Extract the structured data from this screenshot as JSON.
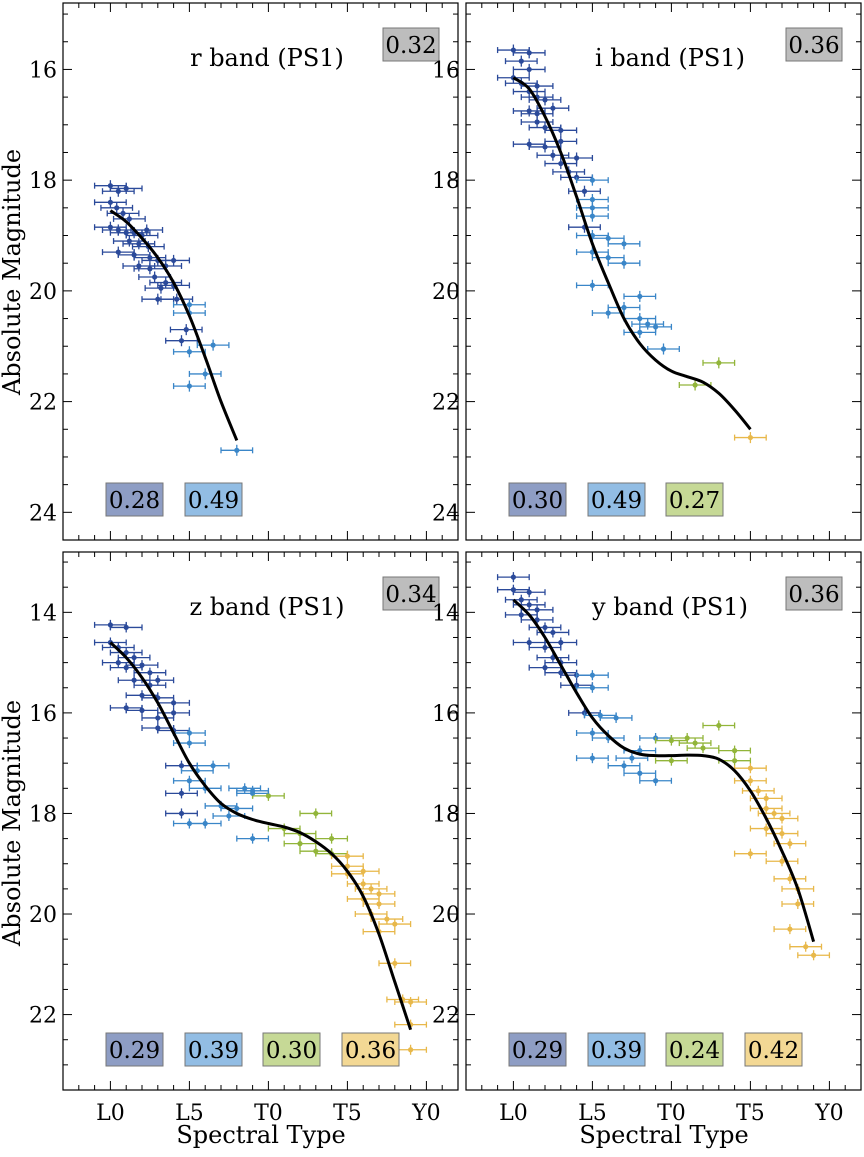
{
  "x_tick_labels": [
    "L0",
    "L5",
    "T0",
    "T5",
    "Y0"
  ],
  "x_axis_label": "Spectral Type",
  "y_axis_label": "Absolute Magnitude",
  "group_colors": {
    "L0-L4": "#2b4a9a",
    "L5-L9": "#3a86c8",
    "T0-T4": "#92b53a",
    "T5-T9": "#e8b84a"
  },
  "box_colors": {
    "grey": "#bdbdbd",
    "L0-L4": "#8e9dc4",
    "L5-L9": "#92bde4",
    "T0-T4": "#c6d996",
    "T5-T9": "#f3d894"
  },
  "chart_data": [
    {
      "type": "scatter",
      "band_label": "r band (PS1)",
      "total_scatter": "0.32",
      "group_scatter": [
        {
          "group": "L0-L4",
          "value": "0.28"
        },
        {
          "group": "L5-L9",
          "value": "0.49"
        }
      ],
      "xlim": [
        -3,
        22
      ],
      "ylim": [
        24.5,
        14.8
      ],
      "yticks": [
        16,
        18,
        20,
        22,
        24
      ],
      "fit": [
        [
          0.0,
          18.55
        ],
        [
          1.0,
          18.75
        ],
        [
          2.0,
          19.05
        ],
        [
          3.0,
          19.4
        ],
        [
          4.0,
          19.85
        ],
        [
          5.0,
          20.45
        ],
        [
          6.0,
          21.2
        ],
        [
          7.0,
          22.0
        ],
        [
          8.0,
          22.7
        ]
      ],
      "points": [
        [
          0,
          18.1
        ],
        [
          0.5,
          18.2
        ],
        [
          1,
          18.15
        ],
        [
          0,
          18.4
        ],
        [
          0.4,
          18.5
        ],
        [
          0.8,
          18.6
        ],
        [
          1.2,
          18.7
        ],
        [
          0,
          18.85
        ],
        [
          0.5,
          18.9
        ],
        [
          1,
          18.95
        ],
        [
          1.5,
          18.95
        ],
        [
          2,
          19.0
        ],
        [
          2.3,
          18.9
        ],
        [
          1.2,
          19.1
        ],
        [
          1.8,
          19.15
        ],
        [
          2.4,
          19.2
        ],
        [
          0.5,
          19.3
        ],
        [
          1.5,
          19.35
        ],
        [
          2.5,
          19.4
        ],
        [
          3.0,
          19.45
        ],
        [
          1.8,
          19.55
        ],
        [
          2.5,
          19.6
        ],
        [
          3.5,
          19.55
        ],
        [
          4.0,
          19.45
        ],
        [
          2.8,
          19.75
        ],
        [
          3.5,
          19.85
        ],
        [
          3.2,
          19.95
        ],
        [
          4.0,
          19.9
        ],
        [
          3.0,
          20.15
        ],
        [
          4.2,
          20.15
        ],
        [
          5.0,
          20.25
        ],
        [
          5.0,
          20.4
        ],
        [
          4.8,
          20.7
        ],
        [
          4.5,
          20.9
        ],
        [
          6.5,
          20.98
        ],
        [
          5.0,
          21.1
        ],
        [
          6.0,
          21.5
        ],
        [
          5.0,
          21.72
        ],
        [
          8.0,
          22.88
        ]
      ]
    },
    {
      "type": "scatter",
      "band_label": "i band (PS1)",
      "total_scatter": "0.36",
      "group_scatter": [
        {
          "group": "L0-L4",
          "value": "0.30"
        },
        {
          "group": "L5-L9",
          "value": "0.49"
        },
        {
          "group": "T0-T4",
          "value": "0.27"
        }
      ],
      "xlim": [
        -3,
        22
      ],
      "ylim": [
        24.5,
        14.8
      ],
      "yticks": [
        16,
        18,
        20,
        22,
        24
      ],
      "fit": [
        [
          0.0,
          16.15
        ],
        [
          1.0,
          16.35
        ],
        [
          2.0,
          16.85
        ],
        [
          3.0,
          17.5
        ],
        [
          4.0,
          18.3
        ],
        [
          5.0,
          19.15
        ],
        [
          6.0,
          19.85
        ],
        [
          7.0,
          20.5
        ],
        [
          8.0,
          20.95
        ],
        [
          9.0,
          21.25
        ],
        [
          10.0,
          21.45
        ],
        [
          11.0,
          21.55
        ],
        [
          12.0,
          21.65
        ],
        [
          13.0,
          21.85
        ],
        [
          14.0,
          22.15
        ],
        [
          15.0,
          22.5
        ]
      ],
      "points": [
        [
          0,
          15.65
        ],
        [
          1,
          15.7
        ],
        [
          0.5,
          15.85
        ],
        [
          1,
          16.0
        ],
        [
          0,
          16.15
        ],
        [
          0.5,
          16.25
        ],
        [
          1.5,
          16.3
        ],
        [
          1,
          16.4
        ],
        [
          1.5,
          16.5
        ],
        [
          2,
          16.55
        ],
        [
          1,
          16.75
        ],
        [
          1.5,
          16.8
        ],
        [
          2.5,
          16.7
        ],
        [
          1.5,
          16.95
        ],
        [
          2,
          17.05
        ],
        [
          3,
          17.1
        ],
        [
          1,
          17.35
        ],
        [
          2,
          17.4
        ],
        [
          3,
          17.3
        ],
        [
          2.5,
          17.55
        ],
        [
          3.0,
          17.7
        ],
        [
          4,
          17.6
        ],
        [
          3.5,
          17.85
        ],
        [
          4,
          17.95
        ],
        [
          5,
          18.0
        ],
        [
          4.5,
          18.2
        ],
        [
          5,
          18.35
        ],
        [
          5,
          18.5
        ],
        [
          5,
          18.65
        ],
        [
          4.5,
          18.85
        ],
        [
          5,
          19.0
        ],
        [
          6,
          19.05
        ],
        [
          7,
          19.15
        ],
        [
          5,
          19.3
        ],
        [
          6,
          19.4
        ],
        [
          7,
          19.5
        ],
        [
          5,
          19.9
        ],
        [
          8,
          20.1
        ],
        [
          7,
          20.3
        ],
        [
          6,
          20.4
        ],
        [
          8,
          20.5
        ],
        [
          8.5,
          20.6
        ],
        [
          8,
          20.75
        ],
        [
          9,
          20.65
        ],
        [
          9.5,
          21.05
        ],
        [
          11.5,
          21.7
        ],
        [
          13,
          21.3
        ],
        [
          15,
          22.65
        ]
      ]
    },
    {
      "type": "scatter",
      "band_label": "z band (PS1)",
      "total_scatter": "0.34",
      "group_scatter": [
        {
          "group": "L0-L4",
          "value": "0.29"
        },
        {
          "group": "L5-L9",
          "value": "0.39"
        },
        {
          "group": "T0-T4",
          "value": "0.30"
        },
        {
          "group": "T5-T9",
          "value": "0.36"
        }
      ],
      "xlim": [
        -3,
        22
      ],
      "ylim": [
        23.5,
        12.8
      ],
      "yticks": [
        14,
        16,
        18,
        20,
        22
      ],
      "fit": [
        [
          0.0,
          14.6
        ],
        [
          1.0,
          14.9
        ],
        [
          2.0,
          15.3
        ],
        [
          3.0,
          15.8
        ],
        [
          4.0,
          16.4
        ],
        [
          5.0,
          17.0
        ],
        [
          6.0,
          17.45
        ],
        [
          7.0,
          17.8
        ],
        [
          8.0,
          18.0
        ],
        [
          9.0,
          18.12
        ],
        [
          10.0,
          18.2
        ],
        [
          11.0,
          18.27
        ],
        [
          12.0,
          18.38
        ],
        [
          13.0,
          18.56
        ],
        [
          14.0,
          18.8
        ],
        [
          15.0,
          19.15
        ],
        [
          16.0,
          19.65
        ],
        [
          17.0,
          20.4
        ],
        [
          18.0,
          21.35
        ],
        [
          19.0,
          22.3
        ]
      ],
      "points": [
        [
          0,
          14.25
        ],
        [
          1,
          14.3
        ],
        [
          0,
          14.6
        ],
        [
          0.5,
          14.7
        ],
        [
          1,
          14.8
        ],
        [
          1.5,
          14.9
        ],
        [
          0.5,
          15.0
        ],
        [
          1,
          15.1
        ],
        [
          2,
          15.05
        ],
        [
          2.5,
          15.2
        ],
        [
          1.5,
          15.35
        ],
        [
          2.5,
          15.45
        ],
        [
          3,
          15.35
        ],
        [
          2,
          15.65
        ],
        [
          3,
          15.7
        ],
        [
          4,
          15.8
        ],
        [
          1,
          15.9
        ],
        [
          2,
          15.95
        ],
        [
          3,
          16.1
        ],
        [
          4,
          16.0
        ],
        [
          3,
          16.3
        ],
        [
          4,
          16.35
        ],
        [
          5,
          16.4
        ],
        [
          5,
          16.6
        ],
        [
          4.5,
          17.05
        ],
        [
          5.5,
          17.15
        ],
        [
          6.5,
          17.05
        ],
        [
          5,
          17.35
        ],
        [
          4.5,
          17.6
        ],
        [
          6,
          17.5
        ],
        [
          4.5,
          18.0
        ],
        [
          5,
          18.2
        ],
        [
          6,
          18.2
        ],
        [
          7,
          17.85
        ],
        [
          7.5,
          18.05
        ],
        [
          8,
          17.9
        ],
        [
          8.5,
          17.5
        ],
        [
          9,
          17.6
        ],
        [
          10,
          17.65
        ],
        [
          9,
          17.55
        ],
        [
          9,
          18.5
        ],
        [
          11,
          18.3
        ],
        [
          12,
          18.4
        ],
        [
          12,
          18.6
        ],
        [
          13,
          18.0
        ],
        [
          13,
          18.75
        ],
        [
          14,
          18.5
        ],
        [
          14,
          18.8
        ],
        [
          15,
          18.85
        ],
        [
          15,
          19.05
        ],
        [
          15,
          19.2
        ],
        [
          16,
          19.15
        ],
        [
          16,
          19.4
        ],
        [
          16.5,
          19.5
        ],
        [
          17,
          19.6
        ],
        [
          16,
          19.7
        ],
        [
          17,
          19.8
        ],
        [
          16.5,
          20.0
        ],
        [
          17.5,
          20.1
        ],
        [
          18,
          20.2
        ],
        [
          17,
          20.35
        ],
        [
          18,
          20.98
        ],
        [
          18.5,
          21.7
        ],
        [
          19,
          21.75
        ],
        [
          19,
          22.2
        ],
        [
          19,
          22.7
        ]
      ]
    },
    {
      "type": "scatter",
      "band_label": "y band (PS1)",
      "total_scatter": "0.36",
      "group_scatter": [
        {
          "group": "L0-L4",
          "value": "0.29"
        },
        {
          "group": "L5-L9",
          "value": "0.39"
        },
        {
          "group": "T0-T4",
          "value": "0.24"
        },
        {
          "group": "T5-T9",
          "value": "0.42"
        }
      ],
      "xlim": [
        -3,
        22
      ],
      "ylim": [
        23.5,
        12.8
      ],
      "yticks": [
        14,
        16,
        18,
        20,
        22
      ],
      "fit": [
        [
          0.0,
          13.75
        ],
        [
          1.0,
          14.05
        ],
        [
          2.0,
          14.5
        ],
        [
          3.0,
          15.05
        ],
        [
          4.0,
          15.6
        ],
        [
          5.0,
          16.1
        ],
        [
          6.0,
          16.45
        ],
        [
          7.0,
          16.7
        ],
        [
          8.0,
          16.82
        ],
        [
          9.0,
          16.85
        ],
        [
          10.0,
          16.85
        ],
        [
          11.0,
          16.84
        ],
        [
          12.0,
          16.85
        ],
        [
          13.0,
          16.92
        ],
        [
          14.0,
          17.15
        ],
        [
          15.0,
          17.55
        ],
        [
          16.0,
          18.1
        ],
        [
          17.0,
          18.75
        ],
        [
          18.0,
          19.5
        ],
        [
          19.0,
          20.55
        ]
      ],
      "points": [
        [
          0,
          13.3
        ],
        [
          0,
          13.55
        ],
        [
          1,
          13.6
        ],
        [
          0.5,
          13.75
        ],
        [
          1,
          13.85
        ],
        [
          1.5,
          13.95
        ],
        [
          0.5,
          14.05
        ],
        [
          1.5,
          14.15
        ],
        [
          2.0,
          14.3
        ],
        [
          2.5,
          14.4
        ],
        [
          1,
          14.6
        ],
        [
          2,
          14.7
        ],
        [
          3,
          14.6
        ],
        [
          2.5,
          14.9
        ],
        [
          3,
          15.0
        ],
        [
          2,
          15.1
        ],
        [
          3,
          15.2
        ],
        [
          4,
          15.25
        ],
        [
          5,
          15.25
        ],
        [
          4,
          15.45
        ],
        [
          5,
          15.5
        ],
        [
          4.5,
          16.0
        ],
        [
          5.5,
          16.05
        ],
        [
          6.5,
          16.1
        ],
        [
          5,
          16.4
        ],
        [
          6,
          16.5
        ],
        [
          5,
          16.9
        ],
        [
          7.5,
          16.9
        ],
        [
          8,
          16.75
        ],
        [
          7,
          17.05
        ],
        [
          8,
          17.2
        ],
        [
          9,
          16.5
        ],
        [
          10,
          16.55
        ],
        [
          11,
          16.5
        ],
        [
          9,
          17.35
        ],
        [
          10,
          16.95
        ],
        [
          11.5,
          16.6
        ],
        [
          12,
          16.7
        ],
        [
          13,
          16.25
        ],
        [
          14,
          16.75
        ],
        [
          14,
          16.95
        ],
        [
          15,
          17.1
        ],
        [
          15,
          17.35
        ],
        [
          15.5,
          17.55
        ],
        [
          16,
          17.7
        ],
        [
          16,
          17.9
        ],
        [
          16.5,
          18.0
        ],
        [
          17,
          18.1
        ],
        [
          16,
          18.3
        ],
        [
          17,
          18.4
        ],
        [
          17.5,
          18.6
        ],
        [
          15,
          18.8
        ],
        [
          17,
          18.95
        ],
        [
          17.5,
          19.3
        ],
        [
          18,
          19.5
        ],
        [
          18,
          19.8
        ],
        [
          17.5,
          20.3
        ],
        [
          18.5,
          20.65
        ],
        [
          19,
          20.82
        ]
      ]
    }
  ]
}
